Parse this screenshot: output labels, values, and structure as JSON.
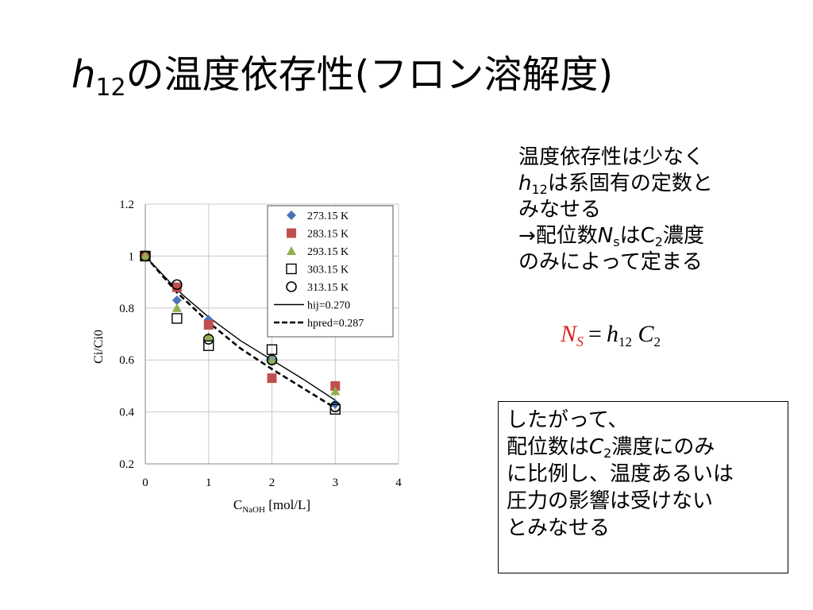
{
  "title": {
    "variable": "h",
    "subscript": "12",
    "text": "の温度依存性(フロン溶解度)"
  },
  "note": {
    "line1": "温度依存性は少なく",
    "line2_var": "h",
    "line2_sub": "12",
    "line2_text": "は系固有の定数と",
    "line3": "みなせる",
    "line4_pre": "→配位数",
    "line4_var": "N",
    "line4_sub": "s",
    "line4_mid": "はC",
    "line4_sub2": "2",
    "line4_post": "濃度",
    "line5": "のみによって定まる"
  },
  "formula": {
    "lhs": "N",
    "lhs_sub": "S",
    "equals": "=",
    "h": "h",
    "h_sub": "12",
    "c": "C",
    "c_sub": "2"
  },
  "conclusion": {
    "line1": "したがって、",
    "line2_pre": "配位数は",
    "line2_var": "C",
    "line2_sub": "2",
    "line2_post": "濃度にのみ",
    "line3": "に比例し、温度あるいは",
    "line4": "圧力の影響は受けない",
    "line5": "とみなせる"
  },
  "chart_data": {
    "type": "scatter",
    "xlabel": "C",
    "xlabel_sub": "NaOH",
    "xlabel_unit": " [mol/L]",
    "ylabel": "Ci/Ci0",
    "xlim": [
      0,
      4
    ],
    "ylim": [
      0.2,
      1.2
    ],
    "xticks": [
      0,
      1,
      2,
      3,
      4
    ],
    "yticks": [
      0.2,
      0.4,
      0.6,
      0.8,
      1,
      1.2
    ],
    "grid": true,
    "legend_position": "top-right",
    "series": [
      {
        "name": "273.15 K",
        "marker": "diamond",
        "color": "#4a72b8",
        "x": [
          0,
          0.5,
          1,
          2,
          3
        ],
        "y": [
          1.0,
          0.83,
          0.755,
          0.6,
          0.43
        ]
      },
      {
        "name": "283.15 K",
        "marker": "square",
        "color": "#c0504d",
        "x": [
          0,
          0.5,
          1,
          2,
          3
        ],
        "y": [
          1.0,
          0.88,
          0.735,
          0.53,
          0.5
        ]
      },
      {
        "name": "293.15 K",
        "marker": "triangle",
        "color": "#8fb04e",
        "x": [
          0,
          0.5,
          1,
          2,
          3
        ],
        "y": [
          1.0,
          0.8,
          0.69,
          0.6,
          0.48
        ]
      },
      {
        "name": "303.15 K",
        "marker": "open-square",
        "color": "#000000",
        "x": [
          0,
          0.5,
          1,
          2,
          3
        ],
        "y": [
          1.0,
          0.76,
          0.655,
          0.64,
          0.41
        ]
      },
      {
        "name": "313.15 K",
        "marker": "open-circle",
        "color": "#000000",
        "x": [
          0,
          0.5,
          1,
          2,
          3
        ],
        "y": [
          1.0,
          0.89,
          0.68,
          0.6,
          0.42
        ]
      },
      {
        "name": "hij=0.270",
        "line": "solid",
        "color": "#000000",
        "x": [
          0,
          0.5,
          1,
          1.5,
          2,
          2.5,
          3
        ],
        "y": [
          1.0,
          0.87,
          0.765,
          0.675,
          0.6,
          0.525,
          0.445
        ]
      },
      {
        "name": "hpred=0.287",
        "line": "dashed",
        "color": "#000000",
        "x": [
          0,
          0.5,
          1,
          1.5,
          2,
          2.5,
          3
        ],
        "y": [
          1.0,
          0.86,
          0.745,
          0.645,
          0.565,
          0.49,
          0.415
        ]
      }
    ]
  }
}
